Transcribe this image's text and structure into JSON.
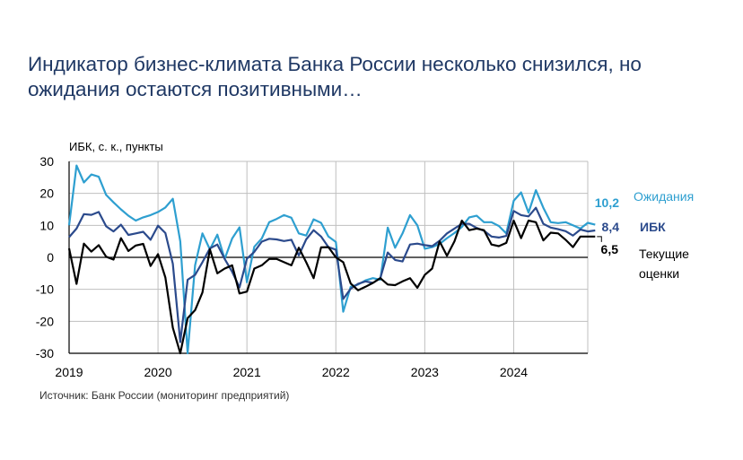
{
  "title": {
    "line1": "Индикатор бизнес-климата Банка России несколько снизился, но",
    "line2": "ожидания остаются позитивными…"
  },
  "source": "Источник: Банк России (мониторинг предприятий)",
  "chart_data": {
    "type": "line",
    "ylabel": "ИБК, с. к., пункты",
    "ylim": [
      -30,
      30
    ],
    "yticks": [
      30,
      20,
      10,
      0,
      -10,
      -20,
      -30
    ],
    "xlim": [
      2019.0,
      2024.833
    ],
    "xticks": [
      2019,
      2020,
      2021,
      2022,
      2023,
      2024
    ],
    "grid": true,
    "start": [
      2019,
      1
    ],
    "series": [
      {
        "name": "Ожидания",
        "key": "expectations",
        "color": "#2e9fd0",
        "last_label": "10,2",
        "values": [
          10,
          28.7,
          23.4,
          25.9,
          25.2,
          19.5,
          17.2,
          15,
          13,
          11.5,
          12.5,
          13.2,
          14.2,
          15.6,
          18.3,
          5,
          -32,
          -2.5,
          7.5,
          2.5,
          7.1,
          -0.5,
          5.9,
          9.4,
          -7.8,
          3.3,
          5.9,
          11,
          12,
          13.2,
          12.4,
          7.5,
          6.8,
          11.9,
          10.8,
          6.5,
          4.8,
          -17,
          -9.2,
          -8.5,
          -7.2,
          -6.5,
          -7,
          9.3,
          3,
          7.5,
          13.2,
          10,
          2.7,
          3.2,
          4.2,
          6,
          7.6,
          9.5,
          12.5,
          13,
          11,
          11,
          9.8,
          7.5,
          17.7,
          20.3,
          14,
          21,
          15.5,
          11,
          10.7,
          11,
          10,
          9,
          10.8,
          10.2
        ]
      },
      {
        "name": "ИБК",
        "key": "ibk",
        "color": "#2b4a8c",
        "last_label": "8,4",
        "values": [
          6.3,
          9,
          13.5,
          13.3,
          14.2,
          9.7,
          8.1,
          10.2,
          7,
          7.5,
          8,
          5.5,
          9.9,
          7.6,
          -2,
          -26.5,
          -7,
          -5.5,
          -1.5,
          2.8,
          4,
          -0.5,
          -4.5,
          -9.4,
          -0.4,
          1.7,
          4.9,
          5.8,
          5.6,
          5.1,
          5.5,
          0.6,
          5.6,
          8.5,
          6.5,
          3.2,
          2.4,
          -13,
          -9.8,
          -8.3,
          -7.5,
          -8,
          -6.5,
          1.5,
          -0.8,
          -1.3,
          4,
          4.3,
          3.8,
          3.5,
          5.2,
          7.5,
          9,
          10.5,
          10.5,
          9.2,
          8.3,
          6.5,
          6.2,
          6.7,
          14.5,
          13.2,
          12.8,
          15.5,
          10.5,
          9.3,
          8.8,
          8.2,
          6.8,
          8.7,
          8.1,
          8.4
        ]
      },
      {
        "name": "Текущие оценки",
        "key": "current",
        "color": "#000000",
        "last_label": "6,5",
        "values": [
          2.8,
          -8.3,
          4.3,
          1.8,
          3.8,
          0.2,
          -0.7,
          6,
          2,
          3.7,
          4.2,
          -2.7,
          1,
          -6.3,
          -22,
          -37,
          -19,
          -16.5,
          -11,
          2.5,
          -5,
          -3.5,
          -2.5,
          -11.3,
          -10.7,
          -3.5,
          -2.5,
          -0.5,
          -0.5,
          -1.5,
          -2.5,
          3,
          -1.5,
          -6.5,
          3.1,
          3.2,
          0,
          -1.5,
          -8.2,
          -10.3,
          -9.2,
          -8,
          -6.5,
          -8.5,
          -8.7,
          -7.5,
          -6.5,
          -9.5,
          -5.5,
          -3.5,
          5,
          0.5,
          5,
          11.5,
          8.5,
          9,
          8.5,
          4,
          3.5,
          4.5,
          11.5,
          6,
          11.5,
          11,
          5.3,
          7.7,
          7.5,
          5.5,
          3.2,
          6.5,
          6.5,
          6.5
        ]
      }
    ],
    "legend": [
      {
        "key": "expectations",
        "text": "Ожидания"
      },
      {
        "key": "ibk",
        "text": "ИБК"
      },
      {
        "key": "current",
        "line1": "Текущие",
        "line2": "оценки"
      }
    ]
  }
}
